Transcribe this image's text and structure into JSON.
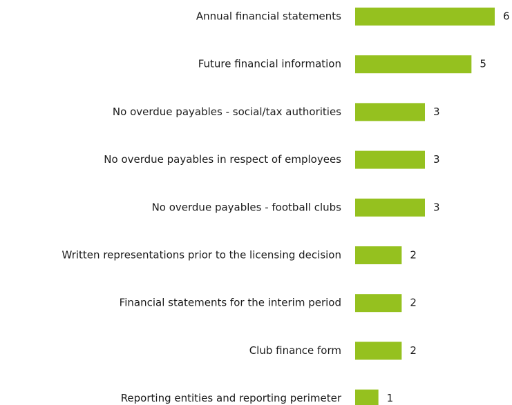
{
  "chart_data": {
    "type": "bar",
    "orientation": "horizontal",
    "categories": [
      "Annual financial statements",
      "Future financial information",
      "No overdue payables - social/tax authorities",
      "No overdue payables in respect of employees",
      "No overdue payables - football clubs",
      "Written representations prior to the licensing decision",
      "Financial statements for the interim period",
      "Club finance form",
      "Reporting entities and reporting perimeter"
    ],
    "values": [
      6,
      5,
      3,
      3,
      3,
      2,
      2,
      2,
      1
    ],
    "color": "#95c11f"
  }
}
